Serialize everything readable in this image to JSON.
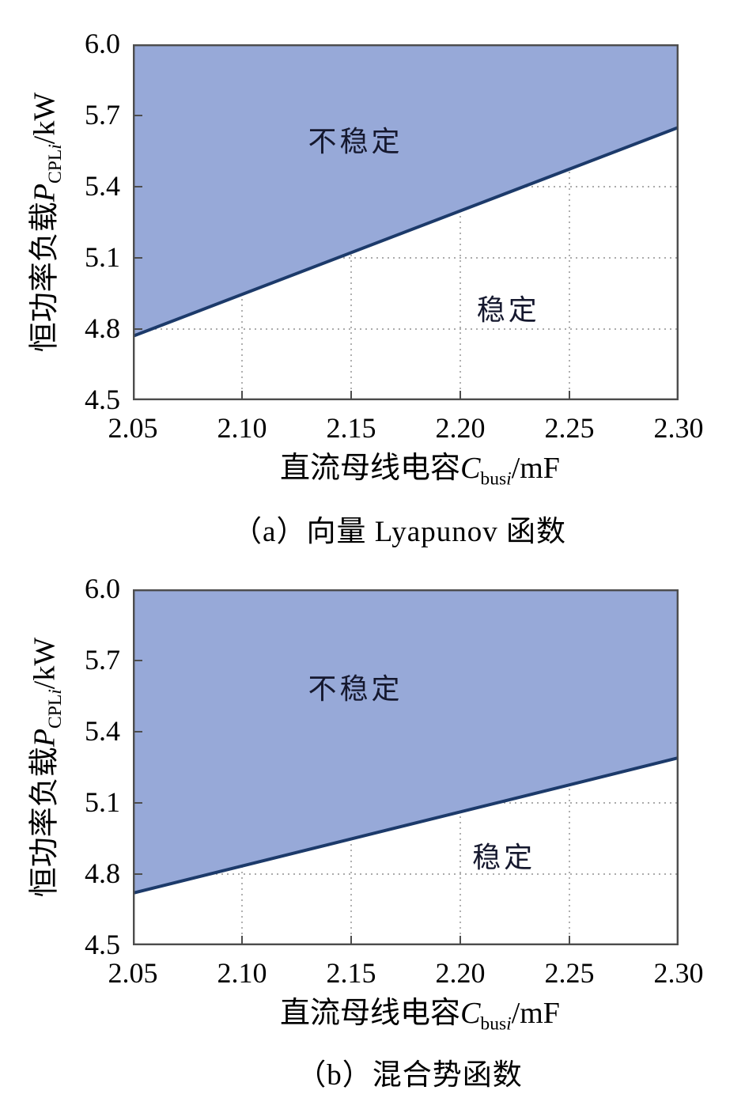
{
  "figure": {
    "background": "#ffffff",
    "colors": {
      "unstable_fill": "#97a9d8",
      "boundary_line": "#1c3a6a",
      "plot_border": "#4d4d4d",
      "gridline": "#8f8f8f",
      "text": "#000000"
    }
  },
  "chart_data": [
    {
      "type": "area",
      "title": "（a）向量 Lyapunov 函数",
      "xlabel": {
        "prefix": "直流母线电容",
        "var": "C",
        "sub": "bus",
        "sub_italic": "i",
        "suffix": "/mF"
      },
      "ylabel": {
        "prefix": "恒功率负载",
        "var": "P",
        "sub": "CPL",
        "sub_italic": "i",
        "suffix": "/kW"
      },
      "xlim": [
        2.05,
        2.3
      ],
      "ylim": [
        4.5,
        6.0
      ],
      "xticks": [
        "2.05",
        "2.10",
        "2.15",
        "2.20",
        "2.25",
        "2.30"
      ],
      "yticks": [
        "4.5",
        "4.8",
        "5.1",
        "5.4",
        "5.7",
        "6.0"
      ],
      "grid": "dotted",
      "legend": "none",
      "boundary_line": {
        "x": [
          2.05,
          2.3
        ],
        "y": [
          4.77,
          5.65
        ]
      },
      "regions": [
        {
          "name": "unstable",
          "label": "不稳定",
          "label_at": [
            2.152,
            5.6
          ]
        },
        {
          "name": "stable",
          "label": "稳定",
          "label_at": [
            2.222,
            4.89
          ]
        }
      ]
    },
    {
      "type": "area",
      "title": "（b）混合势函数",
      "xlabel": {
        "prefix": "直流母线电容",
        "var": "C",
        "sub": "bus",
        "sub_italic": "i",
        "suffix": "/mF"
      },
      "ylabel": {
        "prefix": "恒功率负载",
        "var": "P",
        "sub": "CPL",
        "sub_italic": "i",
        "suffix": "/kW"
      },
      "xlim": [
        2.05,
        2.3
      ],
      "ylim": [
        4.5,
        6.0
      ],
      "xticks": [
        "2.05",
        "2.10",
        "2.15",
        "2.20",
        "2.25",
        "2.30"
      ],
      "yticks": [
        "4.5",
        "4.8",
        "5.1",
        "5.4",
        "5.7",
        "6.0"
      ],
      "grid": "dotted",
      "legend": "none",
      "boundary_line": {
        "x": [
          2.05,
          2.3
        ],
        "y": [
          4.72,
          5.29
        ]
      },
      "regions": [
        {
          "name": "unstable",
          "label": "不稳定",
          "label_at": [
            2.152,
            5.59
          ]
        },
        {
          "name": "stable",
          "label": "稳定",
          "label_at": [
            2.22,
            4.88
          ]
        }
      ]
    }
  ]
}
